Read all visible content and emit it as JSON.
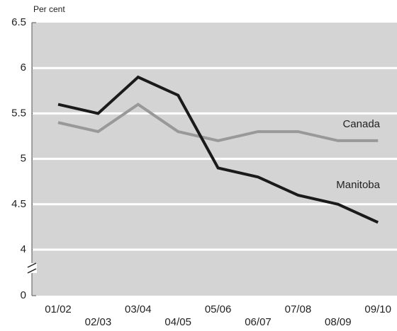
{
  "chart_data": {
    "type": "line",
    "y_label": "Per cent",
    "categories": [
      "01/02",
      "02/03",
      "03/04",
      "04/05",
      "05/06",
      "06/07",
      "07/08",
      "08/09",
      "09/10"
    ],
    "series": [
      {
        "name": "Canada",
        "color": "#999999",
        "values": [
          5.4,
          5.3,
          5.6,
          5.3,
          5.2,
          5.3,
          5.3,
          5.2,
          5.2
        ]
      },
      {
        "name": "Manitoba",
        "color": "#1a1a1a",
        "values": [
          5.6,
          5.5,
          5.9,
          5.7,
          4.9,
          4.8,
          4.6,
          4.5,
          4.3
        ]
      }
    ],
    "ylim": [
      0,
      6.5
    ],
    "yticks": [
      0,
      4,
      4.5,
      5,
      5.5,
      6,
      6.5
    ],
    "y_break": [
      0,
      4
    ],
    "grid": true
  }
}
